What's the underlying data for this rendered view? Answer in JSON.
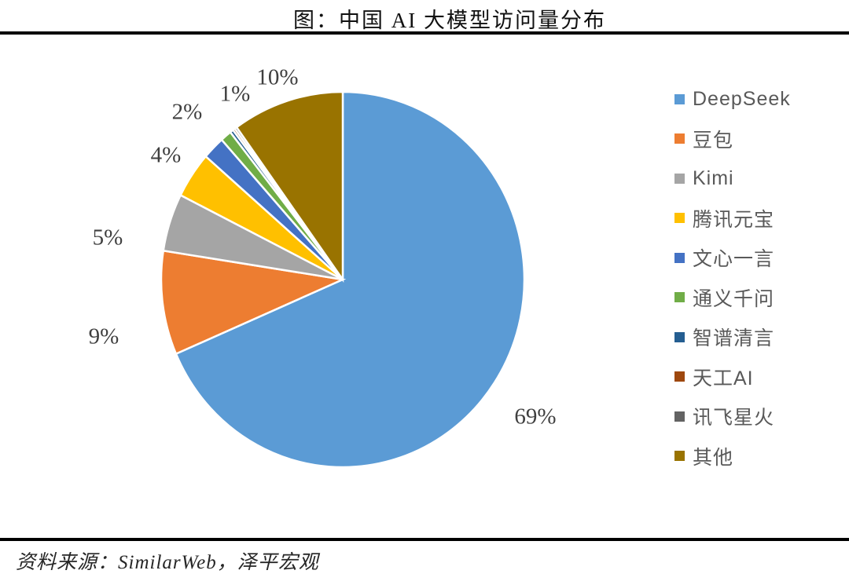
{
  "header": {
    "title": "图：中国 AI 大模型访问量分布"
  },
  "footer": {
    "source": "资料来源：SimilarWeb，泽平宏观"
  },
  "chart_data": {
    "type": "pie",
    "title": "图：中国 AI 大模型访问量分布",
    "legend_position": "right",
    "start_angle_deg": 0,
    "direction": "clockwise",
    "categories": [
      "DeepSeek",
      "豆包",
      "Kimi",
      "腾讯元宝",
      "文心一言",
      "通义千问",
      "智谱清言",
      "天工AI",
      "讯飞星火",
      "其他"
    ],
    "values": [
      69,
      9,
      5,
      4,
      2,
      1,
      0.3,
      0.2,
      0.2,
      10
    ],
    "labels": [
      "69%",
      "9%",
      "5%",
      "4%",
      "2%",
      "1%",
      "",
      "",
      "",
      "10%"
    ],
    "colors": [
      "#5B9BD5",
      "#ED7D31",
      "#A5A5A5",
      "#FFC000",
      "#4472C4",
      "#70AD47",
      "#255E91",
      "#9E480E",
      "#636363",
      "#997300"
    ],
    "slice_border_color": "#FFFFFF",
    "label_color": "#3F3F3F",
    "legend_text_color": "#595959"
  }
}
